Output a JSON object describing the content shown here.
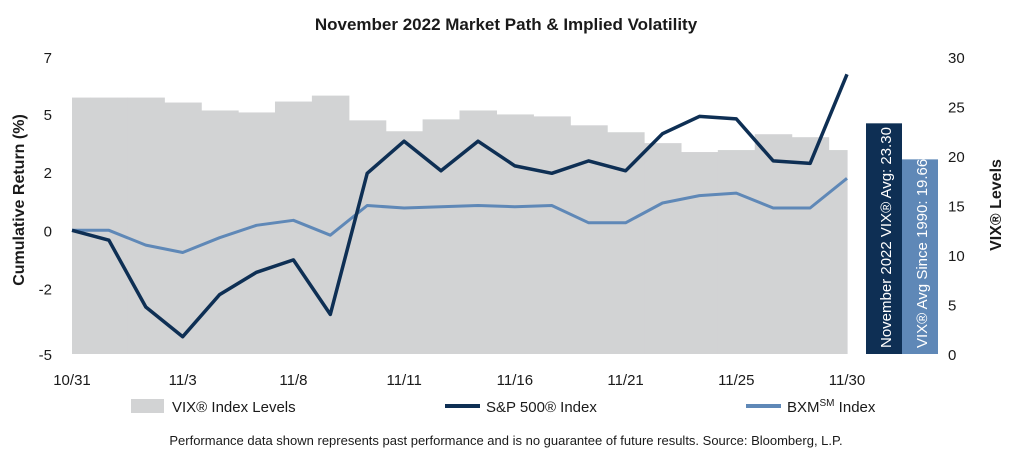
{
  "colors": {
    "vix_area": "#d2d3d4",
    "sp500_line": "#0e2f54",
    "bxm_line": "#5f88b7",
    "nov_bar": "#0e2f54",
    "hist_bar": "#5f88b7"
  },
  "chart_data": {
    "type": "line",
    "title": "November 2022 Market Path & Implied Volatility",
    "ylabel_left": "Cumulative Return (%)",
    "ylabel_right": "VIX® Levels",
    "ylim_left": [
      -5,
      7
    ],
    "ylim_right": [
      0,
      30
    ],
    "left_ticks": [
      {
        "label": "7",
        "value": 7
      },
      {
        "label": "5",
        "value": 4.7
      },
      {
        "label": "2",
        "value": 2.35
      },
      {
        "label": "0",
        "value": 0
      },
      {
        "label": "-2",
        "value": -2.35
      },
      {
        "label": "-5",
        "value": -5
      }
    ],
    "right_ticks": [
      "0",
      "5",
      "10",
      "15",
      "20",
      "25",
      "30"
    ],
    "x": [
      "10/31",
      "11/1",
      "11/2",
      "11/3",
      "11/4",
      "11/7",
      "11/8",
      "11/9",
      "11/10",
      "11/11",
      "11/14",
      "11/15",
      "11/16",
      "11/17",
      "11/18",
      "11/21",
      "11/22",
      "11/23",
      "11/25",
      "11/28",
      "11/29",
      "11/30"
    ],
    "x_tick_labels": [
      "10/31",
      "11/3",
      "11/8",
      "11/11",
      "11/16",
      "11/21",
      "11/25",
      "11/30"
    ],
    "x_tick_indices": [
      0,
      3,
      6,
      9,
      12,
      15,
      18,
      21
    ],
    "series": [
      {
        "name": "VIX® Index Levels",
        "type": "area",
        "values": [
          25.9,
          25.9,
          25.9,
          25.4,
          24.6,
          24.4,
          25.5,
          26.1,
          23.6,
          22.5,
          23.7,
          24.6,
          24.2,
          24.0,
          23.1,
          22.4,
          21.3,
          20.4,
          20.6,
          22.2,
          21.9,
          20.6
        ]
      },
      {
        "name": "S&P 500® Index",
        "type": "line",
        "values": [
          0.0,
          -0.4,
          -3.1,
          -4.3,
          -2.6,
          -1.7,
          -1.2,
          -3.4,
          2.3,
          3.6,
          2.4,
          3.6,
          2.6,
          2.3,
          2.8,
          2.4,
          3.9,
          4.6,
          4.5,
          2.8,
          2.7,
          6.3
        ]
      },
      {
        "name": "BXMSM Index",
        "type": "line",
        "values": [
          0.0,
          0.0,
          -0.6,
          -0.9,
          -0.3,
          0.2,
          0.4,
          -0.2,
          1.0,
          0.9,
          0.95,
          1.0,
          0.95,
          1.0,
          0.3,
          0.3,
          1.1,
          1.4,
          1.5,
          0.9,
          0.9,
          2.1
        ]
      }
    ],
    "reference_bars": [
      {
        "label": "November 2022 VIX® Avg: 23.30",
        "value": 23.3
      },
      {
        "label": "VIX® Avg Since 1990: 19.66",
        "value": 19.66
      }
    ],
    "legend": {
      "position": "bottom",
      "items": [
        "VIX® Index Levels",
        "S&P 500® Index",
        "BXM",
        "SM",
        " Index"
      ]
    }
  },
  "footnote": "Performance data shown represents past performance and is no guarantee of future results. Source: Bloomberg, L.P."
}
